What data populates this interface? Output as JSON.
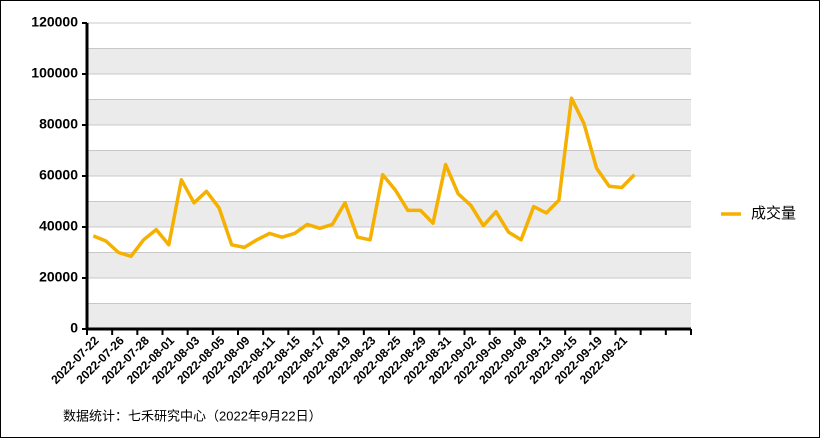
{
  "chart_data": {
    "type": "line",
    "categories": [
      "2022-07-22",
      null,
      "2022-07-26",
      null,
      "2022-07-28",
      null,
      "2022-08-01",
      null,
      "2022-08-03",
      null,
      "2022-08-05",
      null,
      "2022-08-09",
      null,
      "2022-08-11",
      null,
      "2022-08-15",
      null,
      "2022-08-17",
      null,
      "2022-08-19",
      null,
      "2022-08-23",
      null,
      "2022-08-25",
      null,
      "2022-08-29",
      null,
      "2022-08-31",
      null,
      "2022-09-02",
      null,
      "2022-09-06",
      null,
      "2022-09-08",
      null,
      "2022-09-13",
      null,
      "2022-09-15",
      null,
      "2022-09-19",
      null,
      "2022-09-21",
      null,
      null,
      null,
      null,
      null
    ],
    "series": [
      {
        "name": "成交量",
        "color": "#f5b000",
        "values": [
          36500,
          34500,
          30000,
          28500,
          35000,
          39000,
          33000,
          58500,
          49500,
          54000,
          47500,
          33000,
          32000,
          35000,
          37500,
          36000,
          37500,
          41000,
          39500,
          41000,
          49500,
          36000,
          35000,
          60500,
          54500,
          46500,
          46500,
          41500,
          64500,
          53000,
          48500,
          40500,
          46000,
          38000,
          35000,
          48000,
          45500,
          50500,
          90500,
          80500,
          63000,
          56000,
          55500,
          60500,
          null,
          null,
          null,
          null
        ]
      }
    ],
    "ylim": [
      0,
      120000
    ],
    "yticks": [
      0,
      20000,
      40000,
      60000,
      80000,
      100000,
      120000
    ],
    "grid": true,
    "legend": "right",
    "source": "数据统计：七禾研究中心（2022年9月22日）"
  }
}
